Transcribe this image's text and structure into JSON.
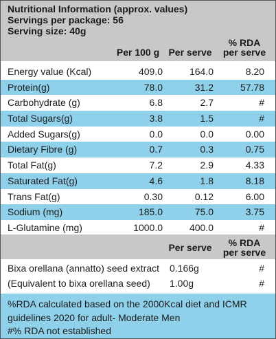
{
  "header": {
    "title": "Nutritional Information (approx. values)",
    "servings": "Servings per package: 56",
    "serving_size": "Serving size: 40g",
    "col_per100": "Per 100 g",
    "col_perserve": "Per serve",
    "col_rda_line1": "% RDA",
    "col_rda_line2": "per serve"
  },
  "rows": [
    {
      "name": "Energy value (Kcal)",
      "per100": "409.0",
      "perserve": "164.0",
      "rda": "8.20"
    },
    {
      "name": "Protein(g)",
      "per100": "78.0",
      "perserve": "31.2",
      "rda": "57.78"
    },
    {
      "name": "Carbohydrate (g)",
      "per100": "6.8",
      "perserve": "2.7",
      "rda": "#"
    },
    {
      "name": "Total Sugars(g)",
      "per100": "3.8",
      "perserve": "1.5",
      "rda": "#"
    },
    {
      "name": "Added Sugars(g)",
      "per100": "0.0",
      "perserve": "0.0",
      "rda": "0.00"
    },
    {
      "name": "Dietary Fibre (g)",
      "per100": "0.7",
      "perserve": "0.3",
      "rda": "0.75"
    },
    {
      "name": "Total Fat(g)",
      "per100": "7.2",
      "perserve": "2.9",
      "rda": "4.33"
    },
    {
      "name": "Saturated Fat(g)",
      "per100": "4.6",
      "perserve": "1.8",
      "rda": "8.18"
    },
    {
      "name": "Trans Fat(g)",
      "per100": "0.30",
      "perserve": "0.12",
      "rda": "6.00"
    },
    {
      "name": "Sodium (mg)",
      "per100": "185.0",
      "perserve": "75.0",
      "rda": "3.75"
    },
    {
      "name": "L-Glutamine (mg)",
      "per100": "1000.0",
      "perserve": "400.0",
      "rda": "#"
    }
  ],
  "divider": {
    "col_perserve": "Per serve",
    "col_rda_line1": "% RDA",
    "col_rda_line2": "per serve"
  },
  "extract": [
    {
      "name": "Bixa orellana (annatto) seed extract",
      "qty": "0.166g",
      "rda": "#"
    },
    {
      "name": "(Equivalent to bixa orellana seed)",
      "qty": "1.00g",
      "rda": "#"
    }
  ],
  "footer": {
    "line1": "%RDA calculated based on the 2000Kcal diet and ICMR",
    "line2": "guidelines 2020 for adult- Moderate Men",
    "line3": "#% RDA not established"
  },
  "colors": {
    "band_gray": "#c8c8c8",
    "band_blue": "#8fd0ea",
    "text": "#1c1c1c"
  }
}
